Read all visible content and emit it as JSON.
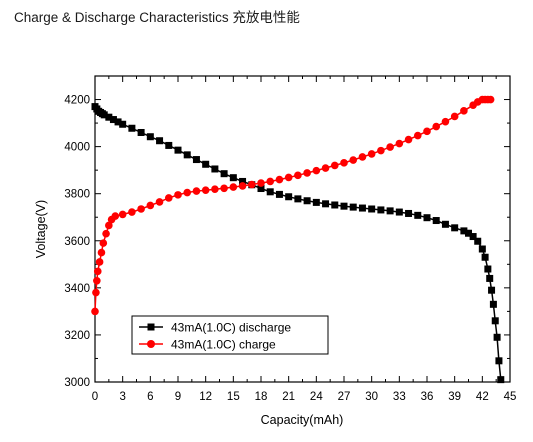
{
  "page": {
    "title": "Charge & Discharge Characteristics 充放电性能"
  },
  "chart_data": {
    "type": "scatter",
    "title": "Charge & Discharge Characteristics 充放电性能",
    "xlabel": "Capacity(mAh)",
    "ylabel": "Voltage(V)",
    "xlim": [
      0,
      45
    ],
    "ylim": [
      3000,
      4300
    ],
    "xticks": [
      0,
      3,
      6,
      9,
      12,
      15,
      18,
      21,
      24,
      27,
      30,
      33,
      36,
      39,
      42,
      45
    ],
    "yticks": [
      3000,
      3200,
      3400,
      3600,
      3800,
      4000,
      4200
    ],
    "ytick_labels_shown": [
      3000,
      3200,
      3400,
      3600,
      3800,
      4000,
      4200
    ],
    "grid": false,
    "legend_position": "bottom-left",
    "series": [
      {
        "name": "43mA(1.0C) discharge",
        "color": "#000000",
        "marker": "square",
        "points": [
          [
            0,
            4170
          ],
          [
            0.2,
            4160
          ],
          [
            0.4,
            4150
          ],
          [
            0.6,
            4145
          ],
          [
            0.8,
            4140
          ],
          [
            1,
            4135
          ],
          [
            1.5,
            4125
          ],
          [
            2,
            4115
          ],
          [
            2.5,
            4105
          ],
          [
            3,
            4095
          ],
          [
            4,
            4078
          ],
          [
            5,
            4060
          ],
          [
            6,
            4042
          ],
          [
            7,
            4025
          ],
          [
            8,
            4005
          ],
          [
            9,
            3985
          ],
          [
            10,
            3965
          ],
          [
            11,
            3945
          ],
          [
            12,
            3925
          ],
          [
            13,
            3905
          ],
          [
            14,
            3885
          ],
          [
            15,
            3868
          ],
          [
            16,
            3852
          ],
          [
            17,
            3838
          ],
          [
            18,
            3822
          ],
          [
            19,
            3808
          ],
          [
            20,
            3797
          ],
          [
            21,
            3787
          ],
          [
            22,
            3778
          ],
          [
            23,
            3770
          ],
          [
            24,
            3763
          ],
          [
            25,
            3757
          ],
          [
            26,
            3752
          ],
          [
            27,
            3747
          ],
          [
            28,
            3743
          ],
          [
            29,
            3739
          ],
          [
            30,
            3735
          ],
          [
            31,
            3731
          ],
          [
            32,
            3727
          ],
          [
            33,
            3722
          ],
          [
            34,
            3716
          ],
          [
            35,
            3708
          ],
          [
            36,
            3698
          ],
          [
            37,
            3686
          ],
          [
            38,
            3670
          ],
          [
            39,
            3655
          ],
          [
            40,
            3642
          ],
          [
            40.5,
            3632
          ],
          [
            41,
            3618
          ],
          [
            41.5,
            3598
          ],
          [
            42,
            3565
          ],
          [
            42.3,
            3530
          ],
          [
            42.6,
            3480
          ],
          [
            42.8,
            3440
          ],
          [
            43,
            3390
          ],
          [
            43.2,
            3330
          ],
          [
            43.4,
            3260
          ],
          [
            43.6,
            3190
          ],
          [
            43.8,
            3090
          ],
          [
            44,
            3010
          ]
        ]
      },
      {
        "name": "43mA(1.0C) charge",
        "color": "#ff0000",
        "marker": "circle",
        "points": [
          [
            0,
            3300
          ],
          [
            0.1,
            3380
          ],
          [
            0.2,
            3430
          ],
          [
            0.3,
            3470
          ],
          [
            0.5,
            3510
          ],
          [
            0.7,
            3550
          ],
          [
            0.9,
            3590
          ],
          [
            1.2,
            3630
          ],
          [
            1.5,
            3665
          ],
          [
            1.8,
            3690
          ],
          [
            2.2,
            3705
          ],
          [
            3,
            3712
          ],
          [
            4,
            3722
          ],
          [
            5,
            3735
          ],
          [
            6,
            3750
          ],
          [
            7,
            3765
          ],
          [
            8,
            3782
          ],
          [
            9,
            3795
          ],
          [
            10,
            3805
          ],
          [
            11,
            3811
          ],
          [
            12,
            3815
          ],
          [
            13,
            3819
          ],
          [
            14,
            3823
          ],
          [
            15,
            3828
          ],
          [
            16,
            3833
          ],
          [
            17,
            3839
          ],
          [
            18,
            3845
          ],
          [
            19,
            3852
          ],
          [
            20,
            3860
          ],
          [
            21,
            3869
          ],
          [
            22,
            3878
          ],
          [
            23,
            3888
          ],
          [
            24,
            3898
          ],
          [
            25,
            3909
          ],
          [
            26,
            3920
          ],
          [
            27,
            3931
          ],
          [
            28,
            3943
          ],
          [
            29,
            3956
          ],
          [
            30,
            3969
          ],
          [
            31,
            3983
          ],
          [
            32,
            3998
          ],
          [
            33,
            4013
          ],
          [
            34,
            4030
          ],
          [
            35,
            4047
          ],
          [
            36,
            4065
          ],
          [
            37,
            4085
          ],
          [
            38,
            4106
          ],
          [
            39,
            4128
          ],
          [
            40,
            4152
          ],
          [
            41,
            4176
          ],
          [
            41.5,
            4190
          ],
          [
            42,
            4200
          ],
          [
            42.3,
            4200
          ],
          [
            42.6,
            4200
          ],
          [
            42.9,
            4200
          ]
        ]
      }
    ]
  }
}
